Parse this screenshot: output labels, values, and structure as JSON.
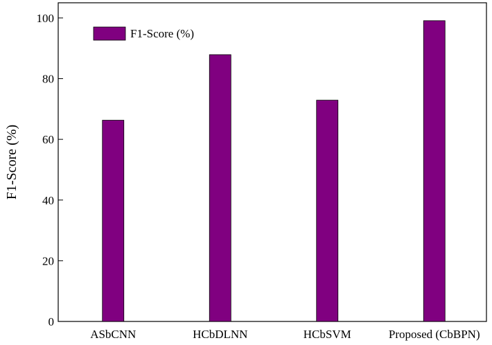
{
  "chart_data": {
    "type": "bar",
    "title": "",
    "xlabel": "",
    "ylabel": "F1-Score (%)",
    "categories": [
      "ASbCNN",
      "HCbDLNN",
      "HCbSVM",
      "Proposed (CbBPN)"
    ],
    "series": [
      {
        "name": "F1-Score (%)",
        "values": [
          66.3,
          87.9,
          72.9,
          99.1
        ],
        "color": "#800080"
      }
    ],
    "ylim": [
      0,
      105
    ],
    "yticks": [
      0,
      20,
      40,
      60,
      80,
      100
    ],
    "grid": false,
    "legend_position": "top-left"
  }
}
